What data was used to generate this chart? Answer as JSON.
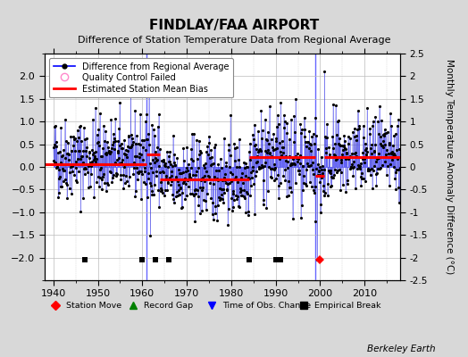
{
  "title": "FINDLAY/FAA AIRPORT",
  "subtitle": "Difference of Station Temperature Data from Regional Average",
  "ylabel": "Monthly Temperature Anomaly Difference (°C)",
  "xlim": [
    1938,
    2018
  ],
  "ylim": [
    -2.5,
    2.5
  ],
  "yticks_left": [
    -2,
    -1.5,
    -1,
    -0.5,
    0,
    0.5,
    1,
    1.5,
    2
  ],
  "yticks_right": [
    -2.5,
    -2,
    -1.5,
    -1,
    -0.5,
    0,
    0.5,
    1,
    1.5,
    2,
    2.5
  ],
  "xticks": [
    1940,
    1950,
    1960,
    1970,
    1980,
    1990,
    2000,
    2010
  ],
  "background_color": "#d8d8d8",
  "plot_bg_color": "#ffffff",
  "seed": 42,
  "obs_changes": [
    1961,
    1999
  ],
  "empirical_breaks": [
    1947,
    1960,
    1963,
    1966,
    1984,
    1990,
    1991
  ],
  "station_moves": [
    2000
  ],
  "bias_segments": [
    {
      "start": 1938,
      "end": 1961,
      "value": 0.05
    },
    {
      "start": 1961,
      "end": 1964,
      "value": 0.28
    },
    {
      "start": 1964,
      "end": 1984,
      "value": -0.27
    },
    {
      "start": 1984,
      "end": 1999,
      "value": 0.22
    },
    {
      "start": 1999,
      "end": 2001,
      "value": -0.2
    },
    {
      "start": 2001,
      "end": 2018,
      "value": 0.22
    }
  ],
  "segment_means": [
    {
      "start": 1940,
      "end": 1961,
      "mean": 0.2,
      "std": 0.45
    },
    {
      "start": 1961,
      "end": 1964,
      "mean": 0.1,
      "std": 0.5
    },
    {
      "start": 1964,
      "end": 1984,
      "mean": -0.25,
      "std": 0.45
    },
    {
      "start": 1984,
      "end": 1999,
      "mean": 0.2,
      "std": 0.5
    },
    {
      "start": 1999,
      "end": 2001,
      "mean": -0.15,
      "std": 0.5
    },
    {
      "start": 2001,
      "end": 2018,
      "mean": 0.2,
      "std": 0.45
    }
  ]
}
